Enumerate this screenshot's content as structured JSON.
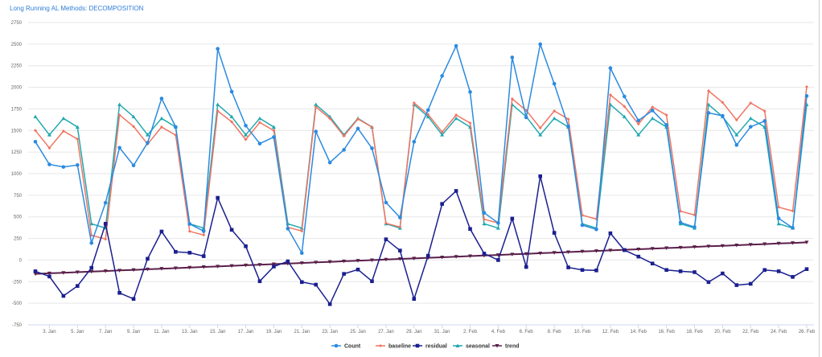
{
  "chart_data": {
    "type": "line",
    "title": "Long Running AL Methods: DECOMPOSITION",
    "xlabel": "",
    "ylabel": "",
    "ylim": [
      -750,
      2750
    ],
    "yticks": [
      -750,
      -500,
      -250,
      0,
      250,
      500,
      750,
      1000,
      1250,
      1500,
      1750,
      2000,
      2250,
      2500,
      2750
    ],
    "grid": true,
    "legend": "bottom",
    "x": [
      "2. Jan",
      "3. Jan",
      "4. Jan",
      "5. Jan",
      "6. Jan",
      "7. Jan",
      "8. Jan",
      "9. Jan",
      "10. Jan",
      "11. Jan",
      "12. Jan",
      "13. Jan",
      "14. Jan",
      "15. Jan",
      "16. Jan",
      "17. Jan",
      "18. Jan",
      "19. Jan",
      "20. Jan",
      "21. Jan",
      "22. Jan",
      "23. Jan",
      "24. Jan",
      "25. Jan",
      "26. Jan",
      "27. Jan",
      "28. Jan",
      "29. Jan",
      "30. Jan",
      "31. Jan",
      "1. Feb",
      "2. Feb",
      "3. Feb",
      "4. Feb",
      "5. Feb",
      "6. Feb",
      "7. Feb",
      "8. Feb",
      "9. Feb",
      "10. Feb",
      "11. Feb",
      "12. Feb",
      "13. Feb",
      "14. Feb",
      "15. Feb",
      "16. Feb",
      "17. Feb",
      "18. Feb",
      "19. Feb",
      "20. Feb",
      "21. Feb",
      "22. Feb",
      "23. Feb",
      "24. Feb",
      "25. Feb",
      "26. Feb"
    ],
    "xticks": [
      "3. Jan",
      "5. Jan",
      "7. Jan",
      "9. Jan",
      "11. Jan",
      "13. Jan",
      "15. Jan",
      "17. Jan",
      "19. Jan",
      "21. Jan",
      "23. Jan",
      "25. Jan",
      "27. Jan",
      "29. Jan",
      "31. Jan",
      "2. Feb",
      "4. Feb",
      "6. Feb",
      "8. Feb",
      "10. Feb",
      "12. Feb",
      "14. Feb",
      "16. Feb",
      "18. Feb",
      "20. Feb",
      "22. Feb",
      "24. Feb",
      "26. Feb"
    ],
    "series": [
      {
        "name": "Count",
        "color": "#2b8ae0",
        "marker": "circle",
        "values": [
          1370,
          1107,
          1078,
          1100,
          197,
          663,
          1300,
          1096,
          1358,
          1870,
          1541,
          418,
          335,
          2446,
          1950,
          1556,
          1348,
          1424,
          364,
          81,
          1488,
          1129,
          1276,
          1523,
          1294,
          666,
          493,
          1369,
          1736,
          2132,
          2479,
          1946,
          547,
          429,
          2346,
          1652,
          2499,
          2041,
          1547,
          404,
          355,
          2222,
          1894,
          1615,
          1732,
          1564,
          435,
          382,
          1704,
          1670,
          1332,
          1543,
          1610,
          482,
          373,
          1900
        ]
      },
      {
        "name": "baseline",
        "color": "#f07562",
        "marker": "diamond",
        "values": [
          1500,
          1297,
          1493,
          1400,
          287,
          243,
          1680,
          1546,
          1343,
          1540,
          1446,
          333,
          290,
          1726,
          1600,
          1396,
          1593,
          1499,
          379,
          336,
          1773,
          1639,
          1436,
          1633,
          1539,
          426,
          383,
          1819,
          1686,
          1482,
          1679,
          1586,
          472,
          429,
          1866,
          1732,
          1529,
          1726,
          1632,
          519,
          475,
          1912,
          1779,
          1575,
          1772,
          1679,
          565,
          522,
          1959,
          1825,
          1622,
          1818,
          1725,
          612,
          568,
          2005
        ]
      },
      {
        "name": "residual",
        "color": "#1a1f8f",
        "marker": "square",
        "values": [
          -130,
          -190,
          -415,
          -300,
          -90,
          420,
          -380,
          -450,
          15,
          330,
          95,
          85,
          45,
          720,
          350,
          160,
          -245,
          -75,
          -15,
          -255,
          -285,
          -510,
          -160,
          -110,
          -245,
          240,
          110,
          -450,
          50,
          650,
          800,
          360,
          75,
          0,
          480,
          -80,
          970,
          315,
          -85,
          -115,
          -120,
          310,
          115,
          40,
          -40,
          -115,
          -130,
          -140,
          -255,
          -155,
          -290,
          -275,
          -115,
          -130,
          -195,
          -105
        ]
      },
      {
        "name": "seasonal",
        "color": "#1fa8b0",
        "marker": "triangle",
        "values": [
          1660,
          1450,
          1640,
          1540,
          420,
          370,
          1800,
          1660,
          1450,
          1640,
          1540,
          420,
          370,
          1800,
          1660,
          1450,
          1640,
          1540,
          420,
          370,
          1800,
          1660,
          1450,
          1640,
          1540,
          420,
          370,
          1800,
          1660,
          1450,
          1640,
          1540,
          420,
          370,
          1800,
          1660,
          1450,
          1640,
          1540,
          420,
          370,
          1800,
          1660,
          1450,
          1640,
          1540,
          420,
          370,
          1800,
          1660,
          1450,
          1640,
          1540,
          420,
          370,
          1800
        ]
      },
      {
        "name": "trend",
        "color": "#5a1f4a",
        "marker": "triangle-down",
        "values": [
          -160,
          -153,
          -147,
          -140,
          -133,
          -127,
          -120,
          -114,
          -107,
          -100,
          -94,
          -87,
          -80,
          -74,
          -67,
          -60,
          -54,
          -47,
          -41,
          -34,
          -27,
          -21,
          -14,
          -7,
          -1,
          6,
          13,
          19,
          26,
          32,
          39,
          46,
          52,
          59,
          66,
          72,
          79,
          86,
          92,
          99,
          105,
          112,
          119,
          125,
          132,
          139,
          145,
          152,
          159,
          165,
          172,
          178,
          185,
          192,
          198,
          205
        ]
      }
    ]
  }
}
